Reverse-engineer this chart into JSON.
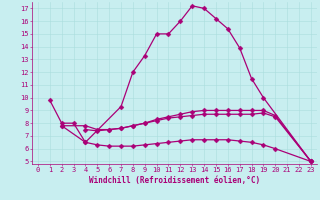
{
  "xlabel": "Windchill (Refroidissement éolien,°C)",
  "bg_color": "#c8eef0",
  "line_color": "#aa0077",
  "grid_color": "#aadddd",
  "xlim": [
    -0.5,
    23.5
  ],
  "ylim": [
    4.8,
    17.5
  ],
  "yticks": [
    5,
    6,
    7,
    8,
    9,
    10,
    11,
    12,
    13,
    14,
    15,
    16,
    17
  ],
  "xticks": [
    0,
    1,
    2,
    3,
    4,
    5,
    6,
    7,
    8,
    9,
    10,
    11,
    12,
    13,
    14,
    15,
    16,
    17,
    18,
    19,
    20,
    21,
    22,
    23
  ],
  "series": [
    {
      "x": [
        1,
        2,
        3,
        4,
        7,
        8,
        9,
        10,
        11,
        12,
        13,
        14,
        15,
        16,
        17,
        18,
        19,
        23
      ],
      "y": [
        9.8,
        8.0,
        8.0,
        6.5,
        9.3,
        12.0,
        13.3,
        15.0,
        15.0,
        16.0,
        17.2,
        17.0,
        16.2,
        15.4,
        13.9,
        11.5,
        10.0,
        5.0
      ]
    },
    {
      "x": [
        2,
        4,
        5,
        6,
        7,
        8,
        9,
        10,
        11,
        12,
        13,
        14,
        15,
        16,
        17,
        18,
        19,
        20,
        23
      ],
      "y": [
        7.8,
        7.8,
        7.5,
        7.5,
        7.6,
        7.8,
        8.0,
        8.2,
        8.4,
        8.5,
        8.6,
        8.7,
        8.7,
        8.7,
        8.7,
        8.7,
        8.8,
        8.5,
        5.0
      ]
    },
    {
      "x": [
        2,
        4,
        5,
        6,
        7,
        8,
        9,
        10,
        11,
        12,
        13,
        14,
        15,
        16,
        17,
        18,
        19,
        20,
        23
      ],
      "y": [
        7.8,
        6.5,
        6.3,
        6.2,
        6.2,
        6.2,
        6.3,
        6.4,
        6.5,
        6.6,
        6.7,
        6.7,
        6.7,
        6.7,
        6.6,
        6.5,
        6.3,
        6.0,
        5.0
      ]
    },
    {
      "x": [
        4,
        5,
        6,
        7,
        8,
        9,
        10,
        11,
        12,
        13,
        14,
        15,
        16,
        17,
        18,
        19,
        20,
        23
      ],
      "y": [
        7.5,
        7.4,
        7.5,
        7.6,
        7.8,
        8.0,
        8.3,
        8.5,
        8.7,
        8.9,
        9.0,
        9.0,
        9.0,
        9.0,
        9.0,
        9.0,
        8.6,
        5.0
      ]
    }
  ],
  "marker": "D",
  "markersize": 2.5,
  "linewidth": 0.9,
  "axis_fontsize": 5.5,
  "tick_fontsize": 5.0
}
